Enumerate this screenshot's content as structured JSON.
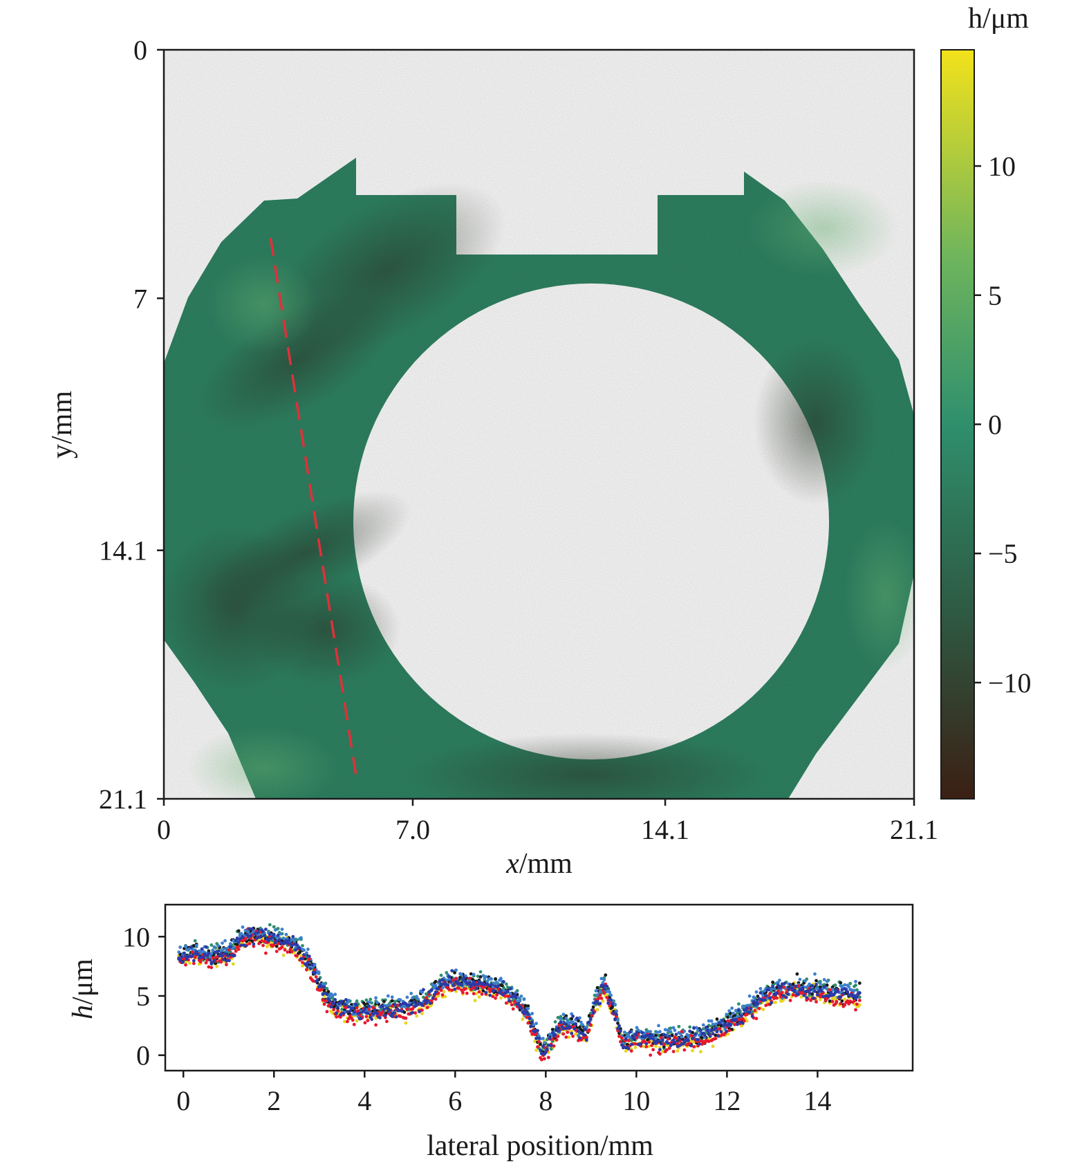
{
  "chart_data": [
    {
      "type": "heatmap",
      "title": "",
      "xlabel": "x/mm",
      "ylabel": "y/mm",
      "xlim": [
        0,
        21.1
      ],
      "ylim": [
        0,
        21.1
      ],
      "y_inverted": true,
      "x_ticks": [
        "0",
        "7.0",
        "14.1",
        "21.1"
      ],
      "x_tick_values": [
        0,
        7.0,
        14.1,
        21.1
      ],
      "y_ticks": [
        "0",
        "7",
        "14.1",
        "21.1"
      ],
      "y_tick_values": [
        0,
        7,
        14.1,
        21.1
      ],
      "colorbar": {
        "label": "h/μm",
        "range": [
          -14.5,
          14.5
        ],
        "ticks": [
          "10",
          "5",
          "0",
          "−5",
          "−10"
        ],
        "tick_values": [
          10,
          5,
          0,
          -5,
          -10
        ],
        "colors": [
          "#3b1f14",
          "#2e5a43",
          "#2f8f6d",
          "#6db45d",
          "#f3e21b"
        ]
      },
      "sample": {
        "description_shape": "annular part with circular hole and rectangular notch",
        "hole_center_mm": [
          11.9,
          13.6
        ],
        "hole_radius_mm": 6.8,
        "mean_height_um": -1.5
      },
      "profile_line": {
        "color": "#e0303a",
        "start_mm": [
          3.0,
          5.3
        ],
        "end_mm": [
          5.4,
          20.4
        ]
      }
    },
    {
      "type": "scatter",
      "title": "",
      "xlabel": "lateral position/mm",
      "ylabel": "h/μm",
      "xlim": [
        -0.4,
        16.1
      ],
      "ylim": [
        -1.3,
        12.7
      ],
      "x_ticks": [
        "0",
        "2",
        "4",
        "6",
        "8",
        "10",
        "12",
        "14"
      ],
      "x_tick_values": [
        0,
        2,
        4,
        6,
        8,
        10,
        12,
        14
      ],
      "y_ticks": [
        "0",
        "5",
        "10"
      ],
      "y_tick_values": [
        0,
        5,
        10
      ],
      "series_colors": [
        "#e8d51d",
        "#2f8f6d",
        "#1a1a1a",
        "#3d7fd0",
        "#e8182e",
        "#2b3aa8"
      ],
      "trend": {
        "x": [
          0,
          0.3,
          0.6,
          1.0,
          1.3,
          1.6,
          2.0,
          2.3,
          2.6,
          2.9,
          3.1,
          3.4,
          3.8,
          4.2,
          4.6,
          5.0,
          5.4,
          5.7,
          6.0,
          6.3,
          6.6,
          7.0,
          7.3,
          7.6,
          7.9,
          8.1,
          8.3,
          8.6,
          8.9,
          9.1,
          9.3,
          9.5,
          9.7,
          10.0,
          10.5,
          11.0,
          11.5,
          12.0,
          12.5,
          13.0,
          13.5,
          14.0,
          14.5,
          14.9
        ],
        "y": [
          8.3,
          8.7,
          8.2,
          8.6,
          9.8,
          10.1,
          9.9,
          9.4,
          8.8,
          7.0,
          5.0,
          4.0,
          3.7,
          3.7,
          3.9,
          4.0,
          4.7,
          6.0,
          6.3,
          6.0,
          5.8,
          5.6,
          4.8,
          3.5,
          0.5,
          1.0,
          2.5,
          2.7,
          1.6,
          4.5,
          5.8,
          4.0,
          1.0,
          1.5,
          1.2,
          1.3,
          1.6,
          2.6,
          3.8,
          5.3,
          5.6,
          5.4,
          5.1,
          5.0
        ]
      }
    }
  ]
}
